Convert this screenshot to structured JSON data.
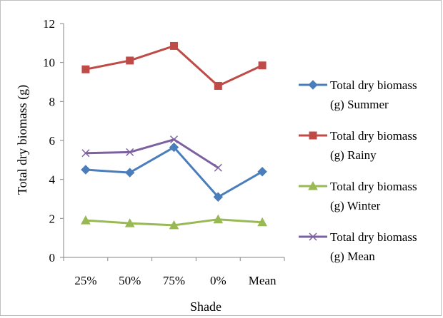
{
  "chart_data": {
    "type": "line",
    "title": "",
    "xlabel": "Shade",
    "ylabel": "Total dry biomass (g)",
    "categories": [
      "25%",
      "50%",
      "75%",
      "0%",
      "Mean"
    ],
    "ylim": [
      0,
      12
    ],
    "yticks": [
      0,
      2,
      4,
      6,
      8,
      10,
      12
    ],
    "grid": false,
    "legend_position": "right",
    "series": [
      {
        "name": "Total dry biomass (g) Summer",
        "legend_lines": [
          "Total dry biomass",
          "(g) Summer"
        ],
        "color": "#4a7ebb",
        "marker": "diamond",
        "values": [
          4.5,
          4.35,
          5.65,
          3.1,
          4.4
        ]
      },
      {
        "name": "Total dry biomass (g) Rainy",
        "legend_lines": [
          "Total dry biomass",
          "(g) Rainy"
        ],
        "color": "#be4b48",
        "marker": "square",
        "values": [
          9.65,
          10.1,
          10.85,
          8.8,
          9.85
        ]
      },
      {
        "name": "Total dry biomass (g) Winter",
        "legend_lines": [
          "Total dry biomass",
          "(g) Winter"
        ],
        "color": "#98b954",
        "marker": "triangle",
        "values": [
          1.9,
          1.75,
          1.65,
          1.95,
          1.8
        ]
      },
      {
        "name": "Total dry biomass (g) Mean",
        "legend_lines": [
          "Total dry biomass",
          "(g) Mean"
        ],
        "color": "#7d60a0",
        "marker": "x",
        "values": [
          5.35,
          5.4,
          6.05,
          4.6,
          null
        ]
      }
    ]
  }
}
